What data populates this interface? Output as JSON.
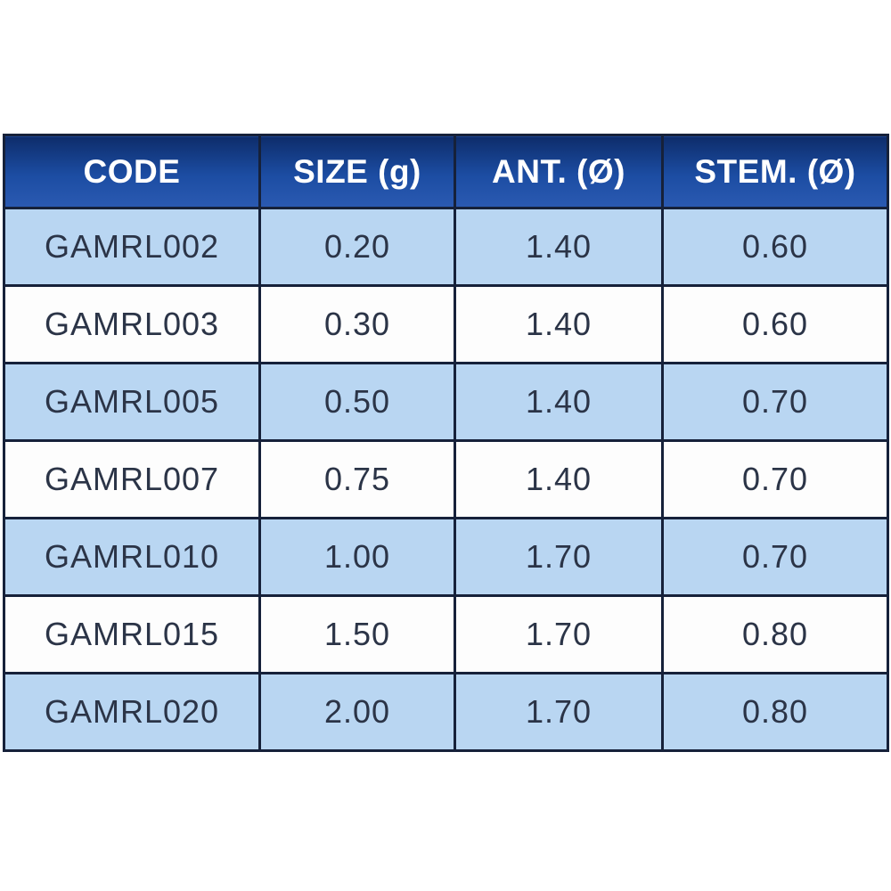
{
  "page": {
    "background": "#ffffff"
  },
  "table": {
    "columns": [
      "CODE",
      "SIZE (g)",
      "ANT. (Ø)",
      "STEM. (Ø)"
    ],
    "rows": [
      [
        "GAMRL002",
        "0.20",
        "1.40",
        "0.60"
      ],
      [
        "GAMRL003",
        "0.30",
        "1.40",
        "0.60"
      ],
      [
        "GAMRL005",
        "0.50",
        "1.40",
        "0.70"
      ],
      [
        "GAMRL007",
        "0.75",
        "1.40",
        "0.70"
      ],
      [
        "GAMRL010",
        "1.00",
        "1.70",
        "0.70"
      ],
      [
        "GAMRL015",
        "1.50",
        "1.70",
        "0.80"
      ],
      [
        "GAMRL020",
        "2.00",
        "1.70",
        "0.80"
      ]
    ],
    "colors": {
      "page_bg": "#ffffff",
      "header_top": "#0e2d6b",
      "header_mid": "#1c4da3",
      "header_bottom": "#2b5ab2",
      "header_text": "#ffffff",
      "row_blue": "#b9d6f2",
      "row_white": "#fdfdfd",
      "border_color": "#16213a",
      "cell_text": "#2b3447"
    }
  },
  "chart_data": {
    "type": "table",
    "title": "",
    "columns": [
      "CODE",
      "SIZE (g)",
      "ANT. (Ø)",
      "STEM. (Ø)"
    ],
    "rows": [
      {
        "code": "GAMRL002",
        "size_g": 0.2,
        "ant_diameter": 1.4,
        "stem_diameter": 0.6
      },
      {
        "code": "GAMRL003",
        "size_g": 0.3,
        "ant_diameter": 1.4,
        "stem_diameter": 0.6
      },
      {
        "code": "GAMRL005",
        "size_g": 0.5,
        "ant_diameter": 1.4,
        "stem_diameter": 0.7
      },
      {
        "code": "GAMRL007",
        "size_g": 0.75,
        "ant_diameter": 1.4,
        "stem_diameter": 0.7
      },
      {
        "code": "GAMRL010",
        "size_g": 1.0,
        "ant_diameter": 1.7,
        "stem_diameter": 0.7
      },
      {
        "code": "GAMRL015",
        "size_g": 1.5,
        "ant_diameter": 1.7,
        "stem_diameter": 0.8
      },
      {
        "code": "GAMRL020",
        "size_g": 2.0,
        "ant_diameter": 1.7,
        "stem_diameter": 0.8
      }
    ],
    "layout": {
      "striped": true,
      "stripe_pattern": "odd rows light blue, even rows white, starting blue",
      "header_style": "dark blue gradient with white bold text"
    }
  }
}
